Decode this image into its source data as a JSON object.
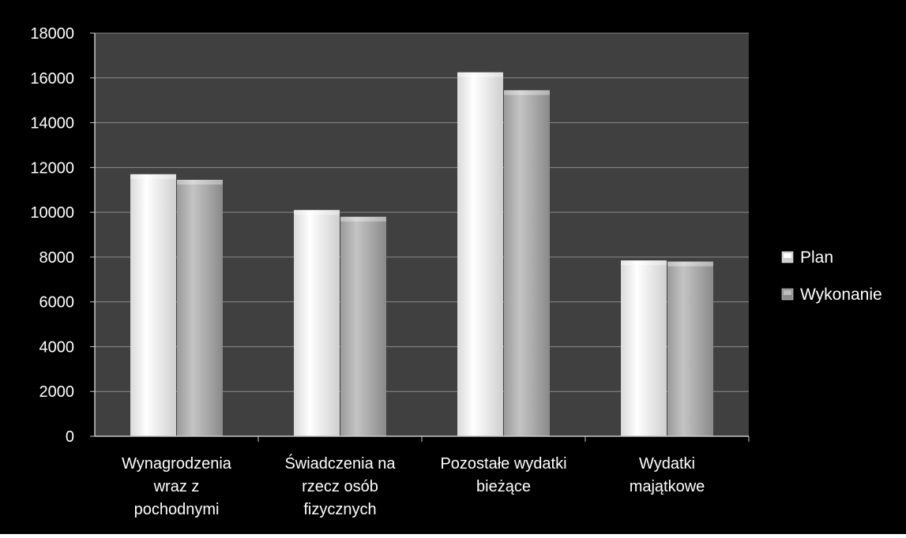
{
  "chart_data": {
    "type": "bar",
    "categories": [
      [
        "Wynagrodzenia",
        "wraz z",
        "pochodnymi"
      ],
      [
        "Świadczenia na",
        "rzecz osób",
        "fizycznych"
      ],
      [
        "Pozostałe wydatki",
        "bieżące"
      ],
      [
        "Wydatki",
        "majątkowe"
      ]
    ],
    "series": [
      {
        "name": "Plan",
        "values": [
          11700,
          10100,
          16250,
          7850
        ]
      },
      {
        "name": "Wykonanie",
        "values": [
          11450,
          9800,
          15450,
          7800
        ]
      }
    ],
    "ylim": [
      0,
      18000
    ],
    "yticks": [
      0,
      2000,
      4000,
      6000,
      8000,
      10000,
      12000,
      14000,
      16000,
      18000
    ],
    "grid": true,
    "legend_position": "right",
    "colors": {
      "background": "#000000",
      "plot_area": "#404040",
      "gridline": "#8a8a8a",
      "axis": "#c8c8c8",
      "text": "#ffffff",
      "plan_light": "#ffffff",
      "plan_dark": "#cfcfcf",
      "wykonanie_light": "#bdbdbd",
      "wykonanie_dark": "#8c8c8c"
    }
  }
}
